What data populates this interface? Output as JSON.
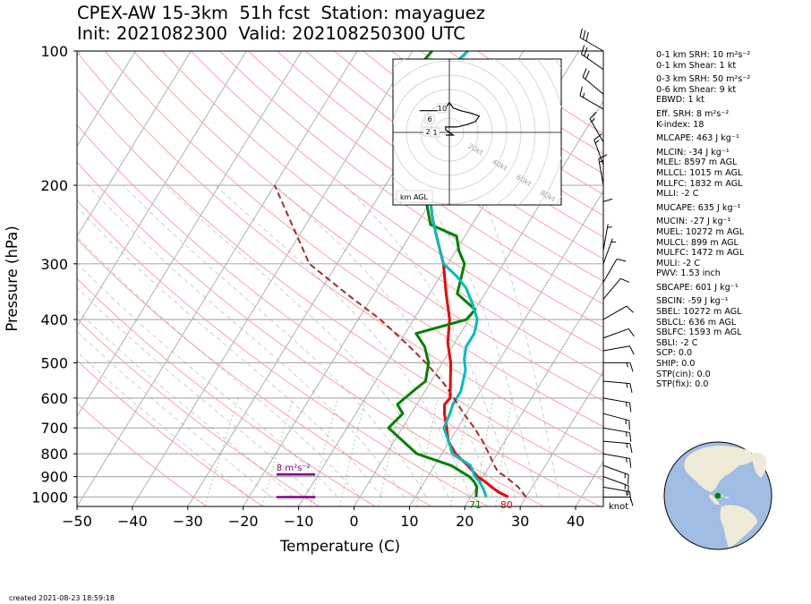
{
  "header": {
    "title_line1": "CPEX-AW 15-3km  51h fcst  Station: mayaguez",
    "title_line2": "Init: 2021082300  Valid: 202108250300 UTC"
  },
  "footer": {
    "created": "created 2021-08-23 18:59:18"
  },
  "params": [
    {
      "text": "0-1 km SRH: 10 m²s⁻²",
      "gap": false
    },
    {
      "text": "0-1 km Shear: 1 kt",
      "gap": false
    },
    {
      "text": "0-3 km SRH: 50 m²s⁻²",
      "gap": true
    },
    {
      "text": "0-6 km Shear: 9 kt",
      "gap": false
    },
    {
      "text": "EBWD: 1 kt",
      "gap": false
    },
    {
      "text": "Eff. SRH: 8 m²s⁻²",
      "gap": true
    },
    {
      "text": "K-index: 18",
      "gap": false
    },
    {
      "text": "MLCAPE: 463 J kg⁻¹",
      "gap": true
    },
    {
      "text": "MLCIN: -34 J kg⁻¹",
      "gap": true
    },
    {
      "text": "MLEL: 8597 m AGL",
      "gap": false
    },
    {
      "text": "MLLCL: 1015 m AGL",
      "gap": false
    },
    {
      "text": "MLLFC: 1832 m AGL",
      "gap": false
    },
    {
      "text": "MLLI: -2 C",
      "gap": false
    },
    {
      "text": "MUCAPE: 635 J kg⁻¹",
      "gap": true
    },
    {
      "text": "MUCIN: -27 J kg⁻¹",
      "gap": true
    },
    {
      "text": "MUEL: 10272 m AGL",
      "gap": false
    },
    {
      "text": "MULCL: 899 m AGL",
      "gap": false
    },
    {
      "text": "MULFC: 1472 m AGL",
      "gap": false
    },
    {
      "text": "MULI: -2 C",
      "gap": false
    },
    {
      "text": "PWV: 1.53 inch",
      "gap": false
    },
    {
      "text": "SBCAPE: 601 J kg⁻¹",
      "gap": true
    },
    {
      "text": "SBCIN: -59 J kg⁻¹",
      "gap": true
    },
    {
      "text": "SBEL: 10272 m AGL",
      "gap": false
    },
    {
      "text": "SBLCL: 636 m AGL",
      "gap": false
    },
    {
      "text": "SBLFC: 1593 m AGL",
      "gap": false
    },
    {
      "text": "SBLI: -2 C",
      "gap": false
    },
    {
      "text": "SCP: 0.0",
      "gap": false
    },
    {
      "text": "SHIP: 0.0",
      "gap": false
    },
    {
      "text": "STP(cin): 0.0",
      "gap": false
    },
    {
      "text": "STP(fix): 0.0",
      "gap": false
    }
  ],
  "chart_data": {
    "type": "line",
    "xlabel": "Temperature (C)",
    "ylabel": "Pressure (hPa)",
    "xlim": [
      -50,
      45
    ],
    "ylim": [
      1050,
      100
    ],
    "y_scale": "log",
    "x_ticks": [
      -50,
      -40,
      -30,
      -20,
      -10,
      0,
      10,
      20,
      30,
      40
    ],
    "y_ticks": [
      100,
      200,
      300,
      400,
      500,
      600,
      700,
      800,
      900,
      1000
    ],
    "grid": true,
    "series": [
      {
        "role": "temperature",
        "color": "#ee0000",
        "x": [
          26.8,
          24.5,
          22.7,
          21.0,
          19.0,
          16.0,
          12.5,
          9.8,
          8.0,
          6.0,
          5.0,
          5.3,
          3.5,
          1.5,
          -1.3,
          -3.5,
          -7.0,
          -10.8,
          -14.0,
          -17.5,
          -21.0,
          -25.0,
          -30.5
        ],
        "y": [
          1000,
          975,
          950,
          925,
          900,
          850,
          800,
          750,
          700,
          650,
          620,
          600,
          550,
          500,
          450,
          400,
          350,
          300,
          270,
          240,
          210,
          180,
          150
        ]
      },
      {
        "role": "dewpoint",
        "color": "#008000",
        "x": [
          21.0,
          20.5,
          20.0,
          19.0,
          17.5,
          13.0,
          5.5,
          -2.5,
          -1.5,
          -3.5,
          -2.0,
          -1.0,
          -2.5,
          -5.0,
          -8.0,
          -0.5,
          0.0,
          -5.0,
          -7.0,
          -9.5,
          -11.5,
          -17.5,
          -20.5,
          -26.0,
          -34.0,
          -38.0,
          -36.5
        ],
        "y": [
          1000,
          975,
          950,
          925,
          900,
          850,
          800,
          700,
          650,
          620,
          575,
          550,
          500,
          460,
          430,
          400,
          380,
          350,
          300,
          280,
          260,
          245,
          220,
          180,
          140,
          120,
          100
        ]
      },
      {
        "role": "wetbulb",
        "color": "#00bcbc",
        "x": [
          22.8,
          22.0,
          21.0,
          20.0,
          18.5,
          16.5,
          12.0,
          7.5,
          7.0,
          6.5,
          6.5,
          5.0,
          3.5,
          2.5,
          2.5,
          1.5,
          -1.0,
          -4.0,
          -7.0,
          -10.8,
          -14.0,
          -17.5,
          -21.0,
          -26.0,
          -32.0,
          -33.0,
          -30.0
        ],
        "y": [
          1000,
          975,
          950,
          925,
          900,
          850,
          800,
          700,
          650,
          620,
          580,
          520,
          490,
          460,
          430,
          400,
          370,
          340,
          320,
          300,
          270,
          240,
          210,
          170,
          130,
          120,
          100
        ]
      },
      {
        "role": "parcel",
        "color": "#a52a2a",
        "dashed": true,
        "x": [
          30.0,
          27.5,
          24.0,
          22.0,
          20.8,
          18.5,
          16.0,
          13.0,
          9.5,
          6.0,
          2.0,
          -3.0,
          -9.0,
          -16.0,
          -25.0,
          -35.0,
          -50.0
        ],
        "y": [
          1000,
          950,
          900,
          875,
          850,
          800,
          750,
          700,
          650,
          600,
          550,
          500,
          450,
          400,
          350,
          300,
          200
        ]
      }
    ],
    "surface_labels": {
      "dewpoint": "71",
      "temperature": "80"
    },
    "srh_annotation": {
      "text": "8 m²s⁻²",
      "p_top": 890,
      "p_bottom": 1000,
      "x_from": -14,
      "x_to": -7,
      "color": "#800080"
    },
    "wind_unit_label": "knot",
    "hodograph": {
      "ring_labels": [
        "20kt",
        "40kt",
        "60kt",
        "80kt"
      ],
      "ring_label_color": "#a0a0a0",
      "corner_label": "km AGL",
      "height_labels": [
        "10",
        "6",
        "2",
        "1"
      ],
      "u": [
        -1,
        0,
        1,
        0,
        -1,
        -1,
        2,
        5,
        7,
        8,
        6,
        3,
        1,
        0,
        -1,
        -3,
        -8
      ],
      "v": [
        -1,
        -1,
        -1,
        0,
        1,
        2,
        2,
        3,
        4,
        6,
        7,
        8,
        9,
        11,
        9,
        8,
        8
      ]
    },
    "wind_barbs": {
      "p": [
        100,
        110,
        125,
        135,
        160,
        180,
        200,
        250,
        280,
        300,
        330,
        360,
        400,
        440,
        470,
        500,
        550,
        600,
        650,
        700,
        750,
        800,
        850,
        900,
        950,
        1000
      ],
      "dir": [
        300,
        305,
        310,
        300,
        330,
        340,
        350,
        0,
        10,
        20,
        30,
        40,
        60,
        70,
        80,
        90,
        95,
        100,
        105,
        100,
        95,
        100,
        110,
        110,
        100,
        90
      ],
      "spd": [
        30,
        25,
        20,
        15,
        15,
        15,
        15,
        10,
        5,
        5,
        10,
        10,
        10,
        10,
        10,
        15,
        15,
        15,
        15,
        15,
        15,
        15,
        15,
        15,
        15,
        10
      ]
    }
  }
}
